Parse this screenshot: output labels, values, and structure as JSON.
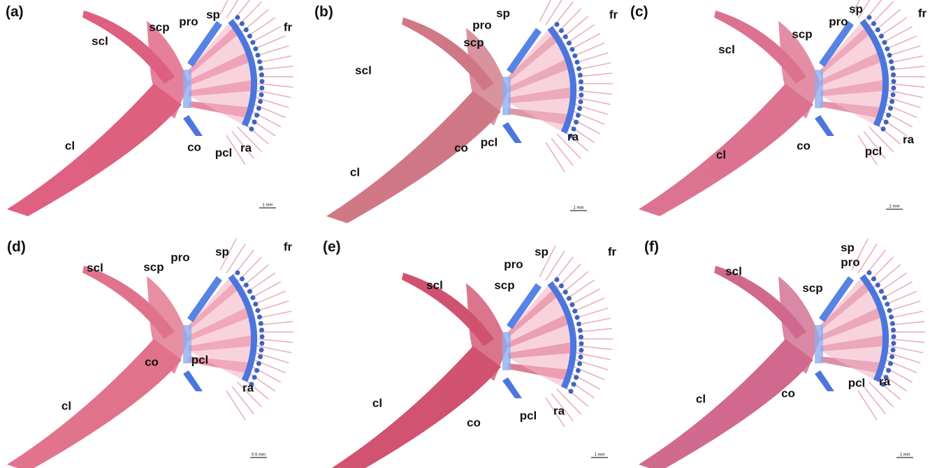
{
  "panels": [
    {
      "label": "(a)",
      "annotations": [
        "scl",
        "scp",
        "pro",
        "sp",
        "fr",
        "cl",
        "co",
        "pcl",
        "ra"
      ],
      "scale_bar": "1 mm"
    },
    {
      "label": "(b)",
      "annotations": [
        "scl",
        "scp",
        "pro",
        "sp",
        "fr",
        "cl",
        "co",
        "pcl",
        "ra"
      ],
      "scale_bar": "1 mm"
    },
    {
      "label": "(c)",
      "annotations": [
        "scl",
        "scp",
        "pro",
        "sp",
        "fr",
        "cl",
        "co",
        "pcl",
        "ra"
      ],
      "scale_bar": "1 mm"
    },
    {
      "label": "(d)",
      "annotations": [
        "scl",
        "scp",
        "pro",
        "sp",
        "fr",
        "cl",
        "co",
        "pcl",
        "ra"
      ],
      "scale_bar": "0.5 mm"
    },
    {
      "label": "(e)",
      "annotations": [
        "scl",
        "scp",
        "pro",
        "sp",
        "fr",
        "cl",
        "co",
        "pcl",
        "ra"
      ],
      "scale_bar": "1 mm"
    },
    {
      "label": "(f)",
      "annotations": [
        "scl",
        "scp",
        "pro",
        "sp",
        "cl",
        "co",
        "pcl",
        "ra"
      ],
      "scale_bar": "1 mm"
    }
  ]
}
